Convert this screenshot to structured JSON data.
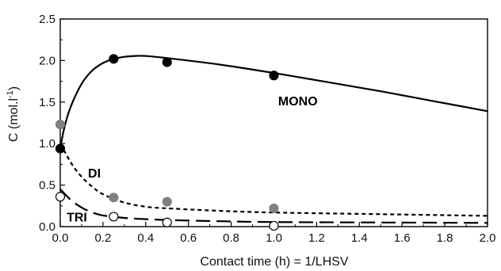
{
  "chart_data": {
    "type": "scatter",
    "xlabel": "Contact time (h) = 1/LHSV",
    "ylabel_main": "C (mol.l",
    "ylabel_sup": "-1",
    "ylabel_close": ")",
    "xlim": [
      0,
      2.0
    ],
    "ylim": [
      0,
      2.5
    ],
    "xticks": [
      "0.0",
      "0.2",
      "0.4",
      "0.6",
      "0.8",
      "1.0",
      "1.2",
      "1.4",
      "1.6",
      "1.8",
      "2.0"
    ],
    "yticks": [
      "0.0",
      "0.5",
      "1.0",
      "1.5",
      "2.0",
      "2.5"
    ],
    "grid": false,
    "series": [
      {
        "name": "MONO",
        "marker": "filled-black",
        "color": "#000000",
        "line_style": "solid",
        "points": [
          [
            0.0,
            0.94
          ],
          [
            0.25,
            2.02
          ],
          [
            0.5,
            1.98
          ],
          [
            1.0,
            1.82
          ]
        ],
        "fit": [
          [
            0.0,
            0.94
          ],
          [
            0.02,
            1.2
          ],
          [
            0.05,
            1.45
          ],
          [
            0.1,
            1.72
          ],
          [
            0.15,
            1.88
          ],
          [
            0.2,
            1.97
          ],
          [
            0.25,
            2.02
          ],
          [
            0.3,
            2.045
          ],
          [
            0.35,
            2.055
          ],
          [
            0.4,
            2.055
          ],
          [
            0.5,
            2.03
          ],
          [
            0.75,
            1.95
          ],
          [
            1.0,
            1.85
          ],
          [
            1.25,
            1.74
          ],
          [
            1.5,
            1.63
          ],
          [
            1.75,
            1.51
          ],
          [
            2.0,
            1.39
          ]
        ]
      },
      {
        "name": "DI",
        "marker": "filled-gray",
        "color": "#808080",
        "line_style": "dotted",
        "points": [
          [
            0.0,
            1.23
          ],
          [
            0.25,
            0.35
          ],
          [
            0.5,
            0.3
          ],
          [
            1.0,
            0.22
          ]
        ],
        "fit": [
          [
            0.0,
            1.0
          ],
          [
            0.03,
            0.86
          ],
          [
            0.06,
            0.73
          ],
          [
            0.1,
            0.6
          ],
          [
            0.15,
            0.48
          ],
          [
            0.2,
            0.39
          ],
          [
            0.3,
            0.29
          ],
          [
            0.4,
            0.24
          ],
          [
            0.5,
            0.22
          ],
          [
            0.75,
            0.19
          ],
          [
            1.0,
            0.17
          ],
          [
            1.5,
            0.15
          ],
          [
            2.0,
            0.13
          ]
        ]
      },
      {
        "name": "TRI",
        "marker": "open-circle",
        "color": "#000000",
        "line_style": "dashed",
        "points": [
          [
            0.0,
            0.36
          ],
          [
            0.25,
            0.12
          ],
          [
            0.5,
            0.05
          ],
          [
            1.0,
            0.01
          ]
        ],
        "fit": [
          [
            0.0,
            0.45
          ],
          [
            0.05,
            0.32
          ],
          [
            0.1,
            0.23
          ],
          [
            0.15,
            0.17
          ],
          [
            0.2,
            0.135
          ],
          [
            0.3,
            0.105
          ],
          [
            0.4,
            0.09
          ],
          [
            0.5,
            0.08
          ],
          [
            0.75,
            0.065
          ],
          [
            1.0,
            0.055
          ],
          [
            1.5,
            0.05
          ],
          [
            2.0,
            0.045
          ]
        ]
      }
    ],
    "labels": [
      {
        "text": "MONO",
        "x": 1.02,
        "y": 1.46
      },
      {
        "text": "DI",
        "x": 0.13,
        "y": 0.59
      },
      {
        "text": "TRI",
        "x": 0.03,
        "y": 0.06
      }
    ]
  }
}
